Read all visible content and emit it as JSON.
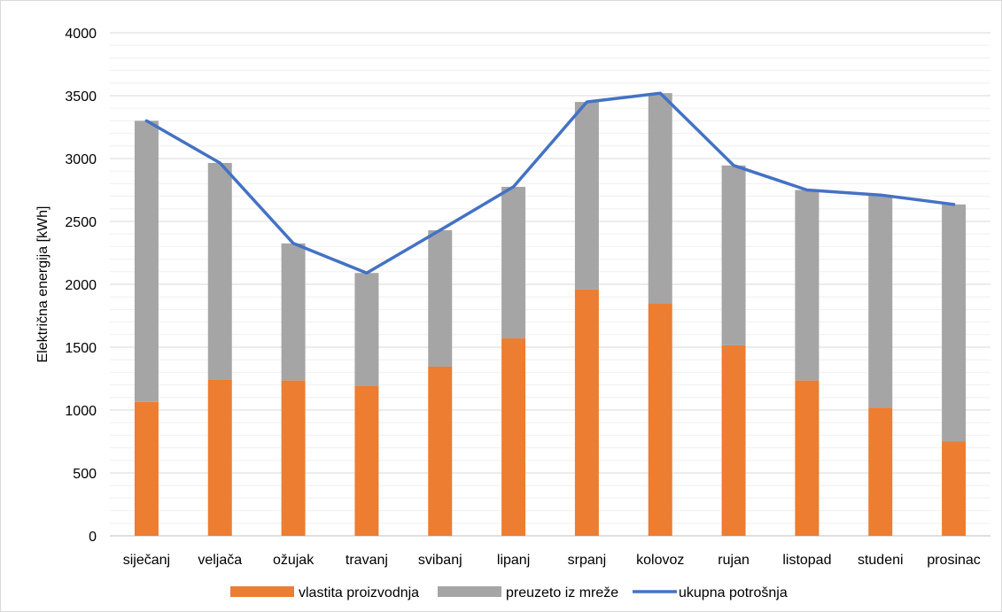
{
  "chart_data": {
    "type": "bar",
    "stacked": true,
    "title": "",
    "xlabel": "",
    "ylabel": "Električna energija [kWh]",
    "ylim": [
      0,
      4000
    ],
    "y_major_ticks": [
      0,
      500,
      1000,
      1500,
      2000,
      2500,
      3000,
      3500,
      4000
    ],
    "y_minor_step": 100,
    "grid": true,
    "legend_position": "bottom",
    "categories": [
      "siječanj",
      "veljača",
      "ožujak",
      "travanj",
      "svibanj",
      "lipanj",
      "srpanj",
      "kolovoz",
      "rujan",
      "listopad",
      "studeni",
      "prosinac"
    ],
    "series": [
      {
        "name": "vlastita proizvodnja",
        "type": "bar",
        "color": "#ED7D31",
        "values": [
          1065,
          1245,
          1235,
          1195,
          1345,
          1570,
          1960,
          1845,
          1515,
          1235,
          1020,
          750
        ]
      },
      {
        "name": "preuzeto iz mreže",
        "type": "bar",
        "color": "#A5A5A5",
        "values": [
          2235,
          1720,
          1090,
          895,
          1085,
          1205,
          1490,
          1675,
          1430,
          1515,
          1690,
          1885
        ]
      },
      {
        "name": "ukupna potrošnja",
        "type": "line",
        "color": "#4472C4",
        "values": [
          3300,
          2965,
          2325,
          2090,
          2430,
          2775,
          3450,
          3520,
          2945,
          2750,
          2710,
          2635
        ]
      }
    ]
  }
}
